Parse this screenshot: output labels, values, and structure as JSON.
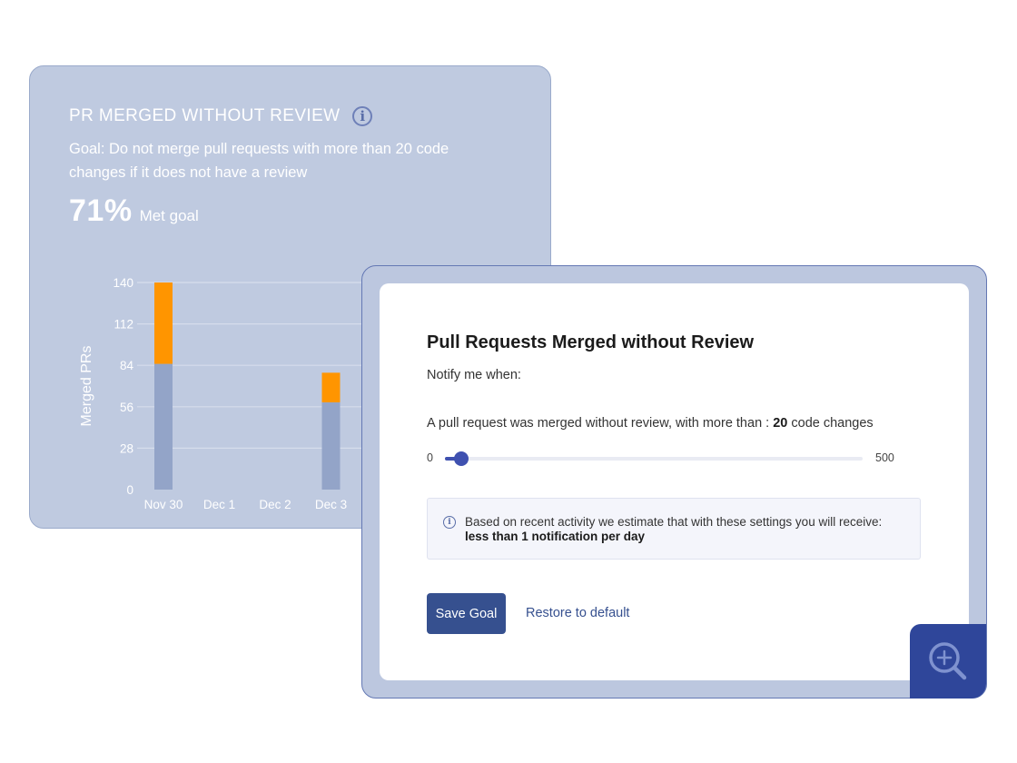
{
  "goal_card": {
    "title": "PR MERGED WITHOUT REVIEW",
    "info_glyph": "i",
    "description": "Goal: Do not merge pull requests with more than 20 code changes if it does not have a review",
    "percent": "71%",
    "percent_label": "Met goal"
  },
  "chart_data": {
    "type": "bar",
    "stacked": true,
    "categories": [
      "Nov 30",
      "Dec 1",
      "Dec 2",
      "Dec 3"
    ],
    "series": [
      {
        "values": [
          85,
          0,
          0,
          59
        ],
        "color": "#93a4c8"
      },
      {
        "values": [
          55,
          0,
          0,
          20
        ],
        "color": "#ff9500"
      }
    ],
    "ylabel": "Merged PRs",
    "yticks": [
      0,
      28,
      56,
      84,
      112,
      140
    ],
    "ylim": [
      0,
      140
    ],
    "grid": true
  },
  "modal": {
    "title": "Pull Requests Merged without Review",
    "notify_label": "Notify me when:",
    "threshold_prefix": "A pull request was merged without review, with more than : ",
    "threshold_value": "20",
    "threshold_suffix": " code changes",
    "slider": {
      "min_label": "0",
      "max_label": "500",
      "min": 0,
      "max": 500,
      "value": 20
    },
    "estimate": {
      "icon": "info-icon",
      "line1": "Based on recent activity we estimate that with these settings you will receive:",
      "line2": "less than 1 notification per day"
    },
    "save_label": "Save Goal",
    "restore_label": "Restore to default"
  },
  "zoom_button": {
    "icon": "zoom-in-icon"
  },
  "colors": {
    "card_bg": "#bfcae0",
    "accent": "#3f51b0",
    "button": "#36508f",
    "bar_base": "#93a4c8",
    "bar_top": "#ff9500"
  }
}
